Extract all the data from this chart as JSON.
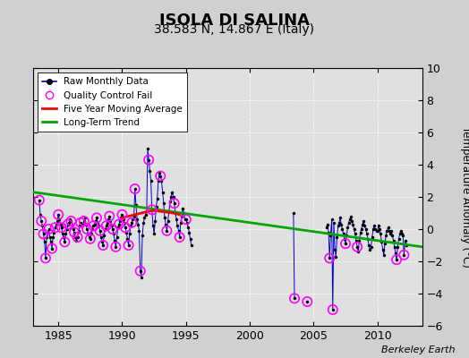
{
  "title": "ISOLA DI SALINA",
  "subtitle": "38.583 N, 14.867 E (Italy)",
  "ylabel": "Temperature Anomaly (°C)",
  "watermark": "Berkeley Earth",
  "xlim": [
    1983.0,
    2013.5
  ],
  "ylim": [
    -6,
    10
  ],
  "yticks": [
    -6,
    -4,
    -2,
    0,
    2,
    4,
    6,
    8,
    10
  ],
  "xticks": [
    1985,
    1990,
    1995,
    2000,
    2005,
    2010
  ],
  "fig_bg": "#d0d0d0",
  "plot_bg": "#e0e0e0",
  "raw_color": "#0000cc",
  "qc_color": "magenta",
  "mavg_color": "red",
  "trend_color": "#00aa00",
  "raw_monthly": [
    [
      1983.5,
      1.8
    ],
    [
      1983.58,
      0.9
    ],
    [
      1983.67,
      0.5
    ],
    [
      1983.75,
      0.2
    ],
    [
      1983.83,
      -0.3
    ],
    [
      1983.92,
      -0.8
    ],
    [
      1984.0,
      -1.8
    ],
    [
      1984.08,
      -0.5
    ],
    [
      1984.17,
      -0.2
    ],
    [
      1984.25,
      0.0
    ],
    [
      1984.33,
      -0.5
    ],
    [
      1984.42,
      -0.8
    ],
    [
      1984.5,
      -1.2
    ],
    [
      1984.58,
      -0.5
    ],
    [
      1984.67,
      -0.2
    ],
    [
      1984.75,
      0.1
    ],
    [
      1984.83,
      0.3
    ],
    [
      1984.92,
      0.5
    ],
    [
      1985.0,
      0.9
    ],
    [
      1985.08,
      0.6
    ],
    [
      1985.17,
      0.3
    ],
    [
      1985.25,
      0.1
    ],
    [
      1985.33,
      -0.3
    ],
    [
      1985.42,
      -0.5
    ],
    [
      1985.5,
      -0.8
    ],
    [
      1985.58,
      -0.3
    ],
    [
      1985.67,
      0.0
    ],
    [
      1985.75,
      0.3
    ],
    [
      1985.83,
      0.4
    ],
    [
      1985.92,
      0.6
    ],
    [
      1986.0,
      0.5
    ],
    [
      1986.08,
      0.3
    ],
    [
      1986.17,
      0.0
    ],
    [
      1986.25,
      -0.2
    ],
    [
      1986.33,
      -0.5
    ],
    [
      1986.42,
      -0.7
    ],
    [
      1986.5,
      -0.5
    ],
    [
      1986.58,
      -0.1
    ],
    [
      1986.67,
      0.2
    ],
    [
      1986.75,
      0.4
    ],
    [
      1986.83,
      0.2
    ],
    [
      1986.92,
      0.3
    ],
    [
      1987.0,
      0.5
    ],
    [
      1987.08,
      0.7
    ],
    [
      1987.17,
      0.3
    ],
    [
      1987.25,
      0.0
    ],
    [
      1987.33,
      -0.3
    ],
    [
      1987.42,
      -0.5
    ],
    [
      1987.5,
      -0.6
    ],
    [
      1987.58,
      -0.3
    ],
    [
      1987.67,
      0.0
    ],
    [
      1987.75,
      0.2
    ],
    [
      1987.83,
      0.3
    ],
    [
      1987.92,
      0.5
    ],
    [
      1988.0,
      0.7
    ],
    [
      1988.08,
      0.4
    ],
    [
      1988.17,
      0.2
    ],
    [
      1988.25,
      -0.1
    ],
    [
      1988.33,
      -0.5
    ],
    [
      1988.42,
      -0.8
    ],
    [
      1988.5,
      -1.0
    ],
    [
      1988.58,
      -0.4
    ],
    [
      1988.67,
      0.0
    ],
    [
      1988.75,
      0.2
    ],
    [
      1988.83,
      0.4
    ],
    [
      1988.92,
      0.6
    ],
    [
      1989.0,
      0.8
    ],
    [
      1989.08,
      0.5
    ],
    [
      1989.17,
      0.2
    ],
    [
      1989.25,
      0.0
    ],
    [
      1989.33,
      -0.3
    ],
    [
      1989.42,
      -0.7
    ],
    [
      1989.5,
      -1.1
    ],
    [
      1989.58,
      -0.5
    ],
    [
      1989.67,
      0.1
    ],
    [
      1989.75,
      0.3
    ],
    [
      1989.83,
      0.5
    ],
    [
      1989.92,
      0.7
    ],
    [
      1990.0,
      0.9
    ],
    [
      1990.08,
      0.6
    ],
    [
      1990.17,
      0.4
    ],
    [
      1990.25,
      0.1
    ],
    [
      1990.33,
      -0.2
    ],
    [
      1990.42,
      -0.6
    ],
    [
      1990.5,
      -1.0
    ],
    [
      1990.58,
      -0.3
    ],
    [
      1990.67,
      0.2
    ],
    [
      1990.75,
      0.4
    ],
    [
      1990.83,
      0.6
    ],
    [
      1990.92,
      0.8
    ],
    [
      1991.0,
      2.5
    ],
    [
      1991.08,
      1.5
    ],
    [
      1991.17,
      0.6
    ],
    [
      1991.25,
      0.3
    ],
    [
      1991.33,
      -0.1
    ],
    [
      1991.42,
      -2.6
    ],
    [
      1991.5,
      -3.0
    ],
    [
      1991.58,
      -0.4
    ],
    [
      1991.67,
      0.4
    ],
    [
      1991.75,
      0.7
    ],
    [
      1991.83,
      0.9
    ],
    [
      1991.92,
      1.1
    ],
    [
      1992.0,
      5.0
    ],
    [
      1992.08,
      4.3
    ],
    [
      1992.17,
      3.6
    ],
    [
      1992.25,
      3.0
    ],
    [
      1992.33,
      1.2
    ],
    [
      1992.42,
      0.2
    ],
    [
      1992.5,
      -0.3
    ],
    [
      1992.58,
      0.5
    ],
    [
      1992.67,
      1.4
    ],
    [
      1992.75,
      1.9
    ],
    [
      1992.83,
      3.0
    ],
    [
      1992.92,
      3.5
    ],
    [
      1993.0,
      3.3
    ],
    [
      1993.08,
      3.0
    ],
    [
      1993.17,
      2.3
    ],
    [
      1993.25,
      1.6
    ],
    [
      1993.33,
      0.7
    ],
    [
      1993.42,
      0.3
    ],
    [
      1993.5,
      -0.1
    ],
    [
      1993.58,
      0.5
    ],
    [
      1993.67,
      1.1
    ],
    [
      1993.75,
      1.7
    ],
    [
      1993.83,
      2.0
    ],
    [
      1993.92,
      2.3
    ],
    [
      1994.0,
      2.0
    ],
    [
      1994.08,
      1.6
    ],
    [
      1994.17,
      1.0
    ],
    [
      1994.25,
      0.6
    ],
    [
      1994.33,
      0.2
    ],
    [
      1994.42,
      -0.1
    ],
    [
      1994.5,
      -0.5
    ],
    [
      1994.58,
      0.4
    ],
    [
      1994.67,
      0.8
    ],
    [
      1994.75,
      1.3
    ],
    [
      1994.83,
      1.0
    ],
    [
      1994.92,
      0.6
    ],
    [
      1995.0,
      0.6
    ],
    [
      1995.08,
      0.4
    ],
    [
      1995.17,
      0.1
    ],
    [
      1995.25,
      -0.2
    ],
    [
      1995.33,
      -0.6
    ],
    [
      1995.42,
      -1.0
    ],
    [
      2003.42,
      1.0
    ],
    [
      2003.5,
      -4.3
    ],
    [
      2004.5,
      -4.5
    ],
    [
      2006.0,
      0.1
    ],
    [
      2006.08,
      0.3
    ],
    [
      2006.17,
      -0.2
    ],
    [
      2006.25,
      -1.8
    ],
    [
      2006.33,
      -0.4
    ],
    [
      2006.42,
      0.6
    ],
    [
      2006.5,
      -5.0
    ],
    [
      2006.58,
      0.4
    ],
    [
      2006.67,
      -1.3
    ],
    [
      2006.75,
      -1.7
    ],
    [
      2006.83,
      -0.5
    ],
    [
      2006.92,
      0.2
    ],
    [
      2007.0,
      0.4
    ],
    [
      2007.08,
      0.7
    ],
    [
      2007.17,
      0.3
    ],
    [
      2007.25,
      0.0
    ],
    [
      2007.33,
      -0.3
    ],
    [
      2007.42,
      -0.6
    ],
    [
      2007.5,
      -0.9
    ],
    [
      2007.58,
      -0.4
    ],
    [
      2007.67,
      0.1
    ],
    [
      2007.75,
      0.4
    ],
    [
      2007.83,
      0.6
    ],
    [
      2007.92,
      0.8
    ],
    [
      2008.0,
      0.5
    ],
    [
      2008.08,
      0.3
    ],
    [
      2008.17,
      0.0
    ],
    [
      2008.25,
      -0.3
    ],
    [
      2008.33,
      -0.7
    ],
    [
      2008.42,
      -1.1
    ],
    [
      2008.5,
      -1.4
    ],
    [
      2008.58,
      -0.7
    ],
    [
      2008.67,
      -0.2
    ],
    [
      2008.75,
      0.0
    ],
    [
      2008.83,
      0.3
    ],
    [
      2008.92,
      0.5
    ],
    [
      2009.0,
      0.2
    ],
    [
      2009.08,
      0.0
    ],
    [
      2009.17,
      -0.3
    ],
    [
      2009.25,
      -0.6
    ],
    [
      2009.33,
      -1.0
    ],
    [
      2009.42,
      -1.3
    ],
    [
      2009.5,
      -1.1
    ],
    [
      2009.58,
      -0.5
    ],
    [
      2009.67,
      0.0
    ],
    [
      2009.75,
      0.2
    ],
    [
      2009.83,
      0.0
    ],
    [
      2009.92,
      -0.1
    ],
    [
      2010.0,
      -0.1
    ],
    [
      2010.08,
      0.2
    ],
    [
      2010.17,
      0.0
    ],
    [
      2010.25,
      -0.3
    ],
    [
      2010.33,
      -0.8
    ],
    [
      2010.42,
      -1.3
    ],
    [
      2010.5,
      -1.6
    ],
    [
      2010.58,
      -0.9
    ],
    [
      2010.67,
      -0.4
    ],
    [
      2010.75,
      -0.1
    ],
    [
      2010.83,
      0.1
    ],
    [
      2010.92,
      -0.1
    ],
    [
      2011.0,
      -0.3
    ],
    [
      2011.08,
      -0.1
    ],
    [
      2011.17,
      -0.4
    ],
    [
      2011.25,
      -0.7
    ],
    [
      2011.33,
      -1.1
    ],
    [
      2011.42,
      -1.5
    ],
    [
      2011.5,
      -1.9
    ],
    [
      2011.58,
      -1.1
    ],
    [
      2011.67,
      -0.6
    ],
    [
      2011.75,
      -0.3
    ],
    [
      2011.83,
      -0.1
    ],
    [
      2011.92,
      -0.3
    ],
    [
      2012.0,
      -0.4
    ],
    [
      2012.08,
      -1.6
    ],
    [
      2012.17,
      -0.7
    ],
    [
      2012.25,
      -1.0
    ]
  ],
  "qc_fail_points": [
    [
      1983.5,
      1.8
    ],
    [
      1983.67,
      0.5
    ],
    [
      1983.83,
      -0.3
    ],
    [
      1984.0,
      -1.8
    ],
    [
      1984.25,
      0.0
    ],
    [
      1984.5,
      -1.2
    ],
    [
      1984.75,
      0.1
    ],
    [
      1985.0,
      0.9
    ],
    [
      1985.25,
      0.1
    ],
    [
      1985.5,
      -0.8
    ],
    [
      1985.75,
      0.3
    ],
    [
      1986.0,
      0.5
    ],
    [
      1986.25,
      -0.2
    ],
    [
      1986.5,
      -0.5
    ],
    [
      1986.75,
      0.4
    ],
    [
      1987.0,
      0.5
    ],
    [
      1987.25,
      0.0
    ],
    [
      1987.5,
      -0.6
    ],
    [
      1987.75,
      0.2
    ],
    [
      1988.0,
      0.7
    ],
    [
      1988.25,
      -0.1
    ],
    [
      1988.5,
      -1.0
    ],
    [
      1988.75,
      0.2
    ],
    [
      1989.0,
      0.8
    ],
    [
      1989.25,
      0.0
    ],
    [
      1989.5,
      -1.1
    ],
    [
      1989.75,
      0.3
    ],
    [
      1990.0,
      0.9
    ],
    [
      1990.25,
      0.1
    ],
    [
      1990.5,
      -1.0
    ],
    [
      1990.75,
      0.4
    ],
    [
      1991.0,
      2.5
    ],
    [
      1991.42,
      -2.6
    ],
    [
      1992.08,
      4.3
    ],
    [
      1992.33,
      1.2
    ],
    [
      1993.0,
      3.3
    ],
    [
      1993.5,
      -0.1
    ],
    [
      1994.08,
      1.6
    ],
    [
      1994.5,
      -0.5
    ],
    [
      1995.0,
      0.6
    ],
    [
      2003.5,
      -4.3
    ],
    [
      2004.5,
      -4.5
    ],
    [
      2006.25,
      -1.8
    ],
    [
      2006.5,
      -5.0
    ],
    [
      2007.5,
      -0.9
    ],
    [
      2008.42,
      -1.1
    ],
    [
      2011.5,
      -1.9
    ],
    [
      2012.08,
      -1.6
    ]
  ],
  "five_year_avg": [
    [
      1990.0,
      0.7
    ],
    [
      1990.5,
      0.8
    ],
    [
      1991.0,
      0.9
    ],
    [
      1991.5,
      1.0
    ],
    [
      1992.0,
      1.1
    ],
    [
      1992.5,
      1.15
    ],
    [
      1993.0,
      1.1
    ],
    [
      1993.5,
      1.05
    ],
    [
      1994.0,
      1.0
    ],
    [
      1994.5,
      0.9
    ]
  ],
  "trend_x": [
    1983.0,
    2013.5
  ],
  "trend_y": [
    2.3,
    -1.1
  ],
  "grid_color": "#ffffff",
  "title_fontsize": 13,
  "subtitle_fontsize": 10
}
